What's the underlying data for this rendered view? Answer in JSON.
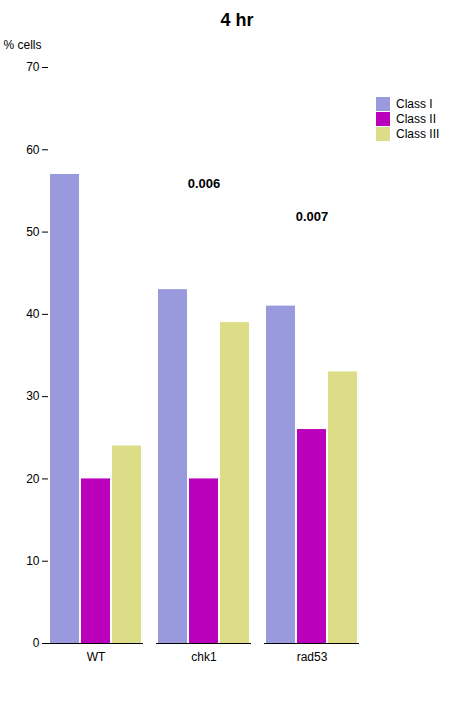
{
  "chart_data": {
    "type": "bar",
    "title": "4 hr",
    "ylabel": "% cells",
    "categories": [
      "WT",
      "chk1",
      "rad53"
    ],
    "series": [
      {
        "name": "Class I",
        "color": "#9999dd",
        "values": [
          57,
          43,
          41
        ]
      },
      {
        "name": "Class II",
        "color": "#bb00bb",
        "values": [
          20,
          20,
          26
        ]
      },
      {
        "name": "Class III",
        "color": "#dddd88",
        "values": [
          24,
          39,
          33
        ]
      }
    ],
    "ylim": [
      0,
      70
    ],
    "yticks": [
      0,
      10,
      20,
      30,
      40,
      50,
      60,
      70
    ],
    "annotations": [
      {
        "text": "0.006",
        "x": "chk1",
        "y": 55
      },
      {
        "text": "0.007",
        "x": "rad53",
        "y": 51
      }
    ],
    "grid": false,
    "legend": "right"
  }
}
